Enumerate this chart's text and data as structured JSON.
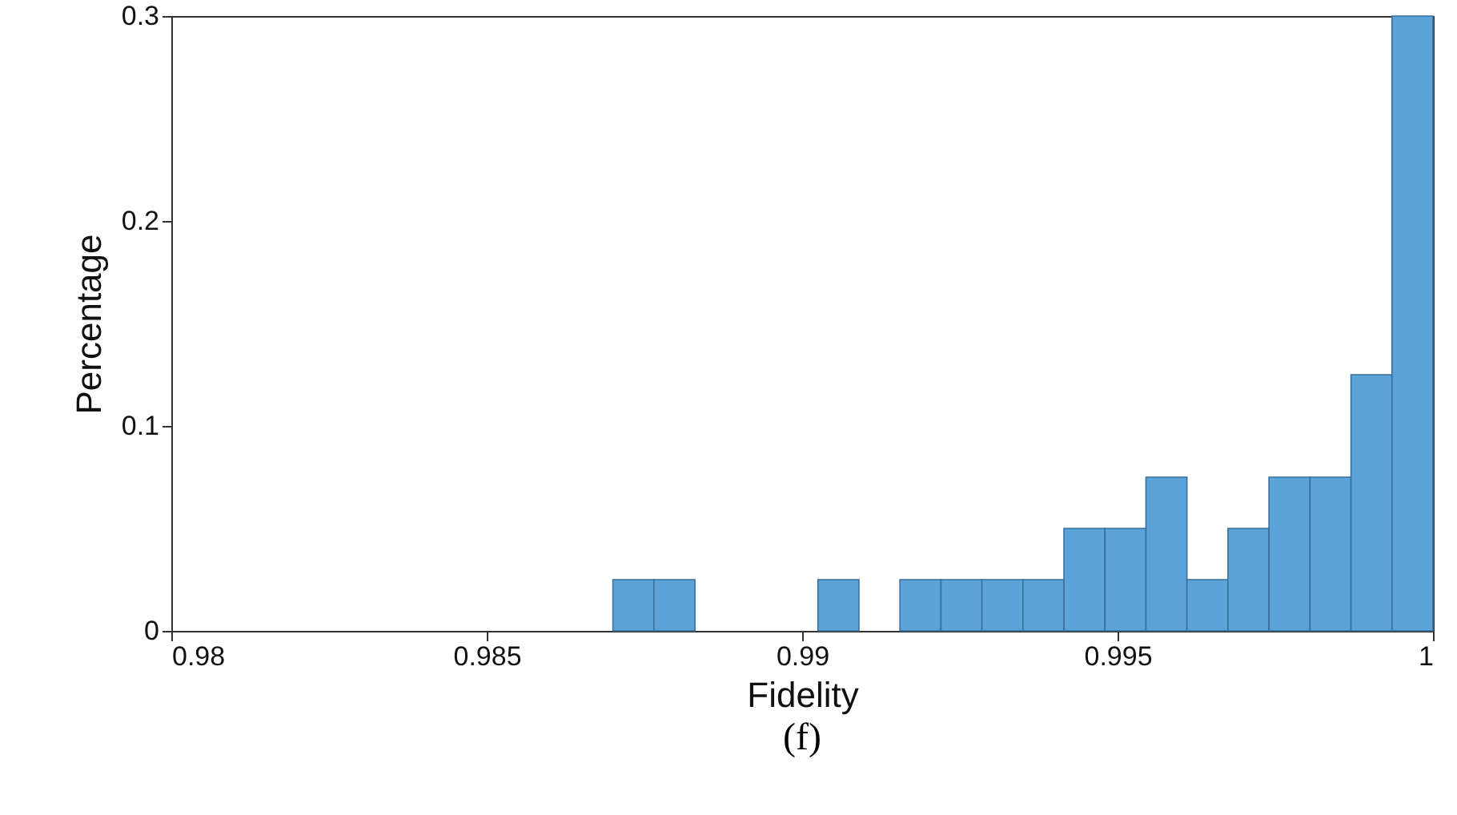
{
  "chart_data": {
    "type": "histogram",
    "xlabel": "Fidelity",
    "ylabel": "Percentage",
    "annotations": [
      "(f)"
    ],
    "bins": [
      0.987,
      0.98765,
      0.9883,
      0.98895,
      0.9896,
      0.99025,
      0.9909,
      0.99155,
      0.9922,
      0.99285,
      0.9935,
      0.99415,
      0.9948,
      0.99545,
      0.9961,
      0.99675,
      0.9974,
      0.99805,
      0.9987,
      0.99935,
      1.0
    ],
    "values": [
      0.025,
      0.025,
      0,
      0,
      0,
      0.025,
      0,
      0.025,
      0.025,
      0.025,
      0.025,
      0.05,
      0.05,
      0.075,
      0.025,
      0.05,
      0.075,
      0.075,
      0.125,
      0.3
    ],
    "color": "#5ba3d9",
    "xlim": [
      0.98,
      1
    ],
    "xticks": [
      0.98,
      0.985,
      0.99,
      0.995,
      1
    ],
    "ylim": [
      0,
      0.3
    ],
    "yticks": [
      0,
      0.1,
      0.2,
      0.3
    ],
    "grid": false
  }
}
